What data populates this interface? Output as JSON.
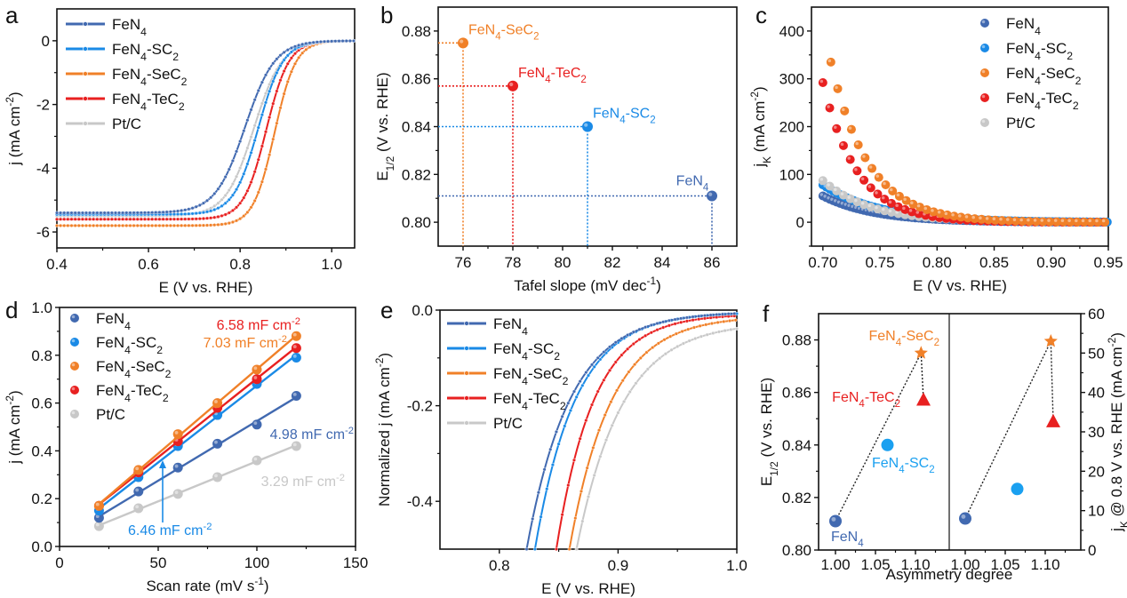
{
  "colors": {
    "FeN4": "#4169b0",
    "FeN4-SC2": "#1a8ae6",
    "FeN4-SeC2": "#f08028",
    "FeN4-TeC2": "#e82020",
    "Pt/C": "#c8c8c8",
    "f_SC2": "#1aa0f0"
  },
  "series_names": [
    "FeN4",
    "FeN4-SC2",
    "FeN4-SeC2",
    "FeN4-TeC2",
    "Pt/C"
  ],
  "chart_data": [
    {
      "panel": "a",
      "type": "line",
      "xlabel": "E (V vs. RHE)",
      "ylabel": "j (mA cm-2)",
      "xlim": [
        0.4,
        1.05
      ],
      "ylim": [
        -6.5,
        1
      ],
      "xticks": [
        0.4,
        0.6,
        0.8,
        1.0
      ],
      "xtick_labels": [
        "0.4",
        "0.6",
        "0.8",
        "1.0"
      ],
      "yticks": [
        0,
        -2,
        -4,
        -6
      ],
      "ytick_labels": [
        "0",
        "-2",
        "-4",
        "-6"
      ],
      "legend": "top-left",
      "series": [
        {
          "name": "FeN4",
          "limit": -5.4,
          "e_half": 0.811,
          "width": 0.042
        },
        {
          "name": "FeN4-SC2",
          "limit": -5.45,
          "e_half": 0.84,
          "width": 0.035
        },
        {
          "name": "FeN4-SeC2",
          "limit": -5.8,
          "e_half": 0.875,
          "width": 0.03
        },
        {
          "name": "FeN4-TeC2",
          "limit": -5.6,
          "e_half": 0.857,
          "width": 0.032
        },
        {
          "name": "Pt/C",
          "limit": -5.5,
          "e_half": 0.83,
          "width": 0.04
        }
      ]
    },
    {
      "panel": "b",
      "type": "scatter",
      "xlabel": "Tafel slope (mV dec-1)",
      "ylabel": "E1/2 (V vs. RHE)",
      "xlim": [
        75,
        87
      ],
      "ylim": [
        0.79,
        0.89
      ],
      "xticks": [
        76,
        78,
        80,
        82,
        84,
        86
      ],
      "xtick_labels": [
        "76",
        "78",
        "80",
        "82",
        "84",
        "86"
      ],
      "yticks": [
        0.8,
        0.82,
        0.84,
        0.86,
        0.88
      ],
      "ytick_labels": [
        "0.80",
        "0.82",
        "0.84",
        "0.86",
        "0.88"
      ],
      "points": [
        {
          "name": "FeN4-SeC2",
          "x": 76,
          "y": 0.875,
          "label": "FeN4-SeC2"
        },
        {
          "name": "FeN4-TeC2",
          "x": 78,
          "y": 0.857,
          "label": "FeN4-TeC2"
        },
        {
          "name": "FeN4-SC2",
          "x": 81,
          "y": 0.84,
          "label": "FeN4-SC2"
        },
        {
          "name": "FeN4",
          "x": 86,
          "y": 0.811,
          "label": "FeN4"
        }
      ]
    },
    {
      "panel": "c",
      "type": "scatter",
      "xlabel": "E (V vs. RHE)",
      "ylabel": "jK (mA cm-2)",
      "xlim": [
        0.69,
        0.95
      ],
      "ylim": [
        -50,
        450
      ],
      "xticks": [
        0.7,
        0.75,
        0.8,
        0.85,
        0.9,
        0.95
      ],
      "xtick_labels": [
        "0.70",
        "0.75",
        "0.80",
        "0.85",
        "0.90",
        "0.95"
      ],
      "yticks": [
        0,
        100,
        200,
        300,
        400
      ],
      "ytick_labels": [
        "0",
        "100",
        "200",
        "300",
        "400"
      ],
      "legend": "top-right",
      "series": [
        {
          "name": "FeN4",
          "start_x": 0.7,
          "start_y": 55,
          "decay": 0.045
        },
        {
          "name": "FeN4-SC2",
          "start_x": 0.7,
          "start_y": 78,
          "decay": 0.05
        },
        {
          "name": "FeN4-SeC2",
          "start_x": 0.707,
          "start_y": 335,
          "decay": 0.033
        },
        {
          "name": "FeN4-TeC2",
          "start_x": 0.7,
          "start_y": 292,
          "decay": 0.03
        },
        {
          "name": "Pt/C",
          "start_x": 0.7,
          "start_y": 87,
          "decay": 0.042
        }
      ]
    },
    {
      "panel": "d",
      "type": "scatter",
      "xlabel": "Scan rate (mV s-1)",
      "ylabel": "j (mA cm-2)",
      "xlim": [
        0,
        150
      ],
      "ylim": [
        0,
        1.0
      ],
      "xticks": [
        0,
        50,
        100,
        150
      ],
      "xtick_labels": [
        "0",
        "50",
        "100",
        "150"
      ],
      "yticks": [
        0,
        0.2,
        0.4,
        0.6,
        0.8,
        1.0
      ],
      "ytick_labels": [
        "0.0",
        "0.2",
        "0.4",
        "0.6",
        "0.8",
        "1.0"
      ],
      "legend": "top-left",
      "x": [
        20,
        40,
        60,
        80,
        100,
        120
      ],
      "series": [
        {
          "name": "FeN4",
          "values": [
            0.12,
            0.23,
            0.33,
            0.43,
            0.51,
            0.63
          ],
          "annotation": "4.98 mF cm-2"
        },
        {
          "name": "FeN4-SC2",
          "values": [
            0.15,
            0.29,
            0.42,
            0.55,
            0.68,
            0.79
          ],
          "annotation": "6.46 mF cm-2"
        },
        {
          "name": "FeN4-SeC2",
          "values": [
            0.17,
            0.32,
            0.47,
            0.6,
            0.74,
            0.88
          ],
          "annotation": "7.03 mF cm-2"
        },
        {
          "name": "FeN4-TeC2",
          "values": [
            0.17,
            0.31,
            0.44,
            0.58,
            0.7,
            0.83
          ],
          "annotation": "6.58 mF cm-2"
        },
        {
          "name": "Pt/C",
          "values": [
            0.085,
            0.16,
            0.22,
            0.29,
            0.36,
            0.42
          ],
          "annotation": "3.29 mF cm-2"
        }
      ]
    },
    {
      "panel": "e",
      "type": "line",
      "xlabel": "E (V vs. RHE)",
      "ylabel": "Normalized j (mA cm-2)",
      "xlim": [
        0.75,
        1.0
      ],
      "ylim": [
        -0.5,
        0.0
      ],
      "xticks": [
        0.8,
        0.9,
        1.0
      ],
      "xtick_labels": [
        "0.8",
        "0.9",
        "1.0"
      ],
      "yticks": [
        0.0,
        -0.2,
        -0.4
      ],
      "ytick_labels": [
        "0.0",
        "-0.2",
        "-0.4"
      ],
      "legend": "top-left",
      "series": [
        {
          "name": "FeN4",
          "x_at_bottom": 0.823,
          "end_y": -0.003,
          "k": 30
        },
        {
          "name": "FeN4-SC2",
          "x_at_bottom": 0.83,
          "end_y": -0.004,
          "k": 31
        },
        {
          "name": "FeN4-SeC2",
          "x_at_bottom": 0.859,
          "end_y": -0.012,
          "k": 25
        },
        {
          "name": "FeN4-TeC2",
          "x_at_bottom": 0.848,
          "end_y": -0.008,
          "k": 30
        },
        {
          "name": "Pt/C",
          "x_at_bottom": 0.865,
          "end_y": -0.025,
          "k": 22
        }
      ]
    },
    {
      "panel": "f",
      "type": "scatter",
      "xlabel": "Asymmetry degree",
      "ylabel_left": "E1/2 (V vs. RHE)",
      "ylabel_right": "jK @ 0.8 V vs. RHE (mA cm-2)",
      "xlim": [
        0.98,
        1.14
      ],
      "ylim_left": [
        0.8,
        0.89
      ],
      "ylim_right": [
        0,
        60
      ],
      "xticks": [
        1.0,
        1.05,
        1.1
      ],
      "xtick_labels": [
        "1.00",
        "1.05",
        "1.10"
      ],
      "yticks_left": [
        0.8,
        0.82,
        0.84,
        0.86,
        0.88
      ],
      "ytick_labels_left": [
        "0.80",
        "0.82",
        "0.84",
        "0.86",
        "0.88"
      ],
      "yticks_right": [
        0,
        10,
        20,
        30,
        40,
        50,
        60
      ],
      "ytick_labels_right": [
        "0",
        "10",
        "20",
        "30",
        "40",
        "50",
        "60"
      ],
      "left_points": [
        {
          "name": "FeN4",
          "x": 1.0,
          "y": 0.811,
          "marker": "sphere",
          "label": "FeN4"
        },
        {
          "name": "FeN4-SC2",
          "x": 1.065,
          "y": 0.84,
          "marker": "circle",
          "label": "FeN4-SC2"
        },
        {
          "name": "FeN4-SeC2",
          "x": 1.107,
          "y": 0.875,
          "marker": "star",
          "label": "FeN4-SeC2"
        },
        {
          "name": "FeN4-TeC2",
          "x": 1.11,
          "y": 0.857,
          "marker": "triangle",
          "label": "FeN4-TeC2"
        }
      ],
      "right_points": [
        {
          "name": "FeN4",
          "x": 1.0,
          "y": 8,
          "marker": "sphere"
        },
        {
          "name": "FeN4-SC2",
          "x": 1.065,
          "y": 15.5,
          "marker": "circle"
        },
        {
          "name": "FeN4-SeC2",
          "x": 1.107,
          "y": 53,
          "marker": "star"
        },
        {
          "name": "FeN4-TeC2",
          "x": 1.11,
          "y": 32.5,
          "marker": "triangle"
        }
      ]
    }
  ],
  "panel_labels": [
    "a",
    "b",
    "c",
    "d",
    "e",
    "f"
  ]
}
